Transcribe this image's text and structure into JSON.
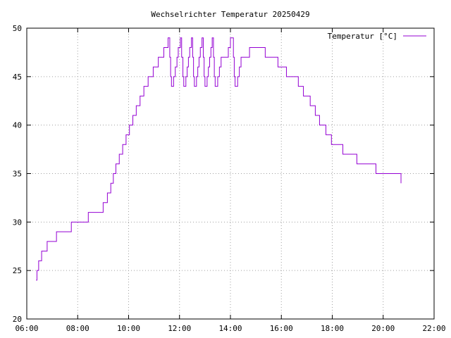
{
  "chart_data": {
    "type": "line",
    "title": "Wechselrichter Temperatur 20250429",
    "xlabel": "",
    "ylabel": "",
    "x_ticks": [
      "06:00",
      "08:00",
      "10:00",
      "12:00",
      "14:00",
      "16:00",
      "18:00",
      "20:00",
      "22:00"
    ],
    "y_ticks": [
      "20",
      "25",
      "30",
      "35",
      "40",
      "45",
      "50"
    ],
    "xlim": [
      "06:00",
      "22:00"
    ],
    "ylim": [
      20,
      50
    ],
    "grid": true,
    "legend_position": "top-right",
    "series": [
      {
        "name": "Temperatur [°C]",
        "color": "#9400d3",
        "step": true,
        "points": [
          [
            "06:22",
            24
          ],
          [
            "06:24",
            25
          ],
          [
            "06:28",
            26
          ],
          [
            "06:35",
            27
          ],
          [
            "06:48",
            28
          ],
          [
            "07:10",
            29
          ],
          [
            "07:45",
            30
          ],
          [
            "08:25",
            31
          ],
          [
            "09:00",
            32
          ],
          [
            "09:10",
            33
          ],
          [
            "09:18",
            34
          ],
          [
            "09:24",
            35
          ],
          [
            "09:30",
            36
          ],
          [
            "09:38",
            37
          ],
          [
            "09:46",
            38
          ],
          [
            "09:54",
            39
          ],
          [
            "10:02",
            40
          ],
          [
            "10:10",
            41
          ],
          [
            "10:18",
            42
          ],
          [
            "10:27",
            43
          ],
          [
            "10:36",
            44
          ],
          [
            "10:46",
            45
          ],
          [
            "10:58",
            46
          ],
          [
            "11:10",
            47
          ],
          [
            "11:23",
            48
          ],
          [
            "11:33",
            49
          ],
          [
            "11:37",
            47
          ],
          [
            "11:39",
            45
          ],
          [
            "11:41",
            44
          ],
          [
            "11:46",
            45
          ],
          [
            "11:50",
            46
          ],
          [
            "11:54",
            47
          ],
          [
            "11:57",
            48
          ],
          [
            "12:02",
            49
          ],
          [
            "12:05",
            47
          ],
          [
            "12:08",
            45
          ],
          [
            "12:10",
            44
          ],
          [
            "12:15",
            45
          ],
          [
            "12:18",
            46
          ],
          [
            "12:21",
            47
          ],
          [
            "12:24",
            48
          ],
          [
            "12:28",
            49
          ],
          [
            "12:31",
            47
          ],
          [
            "12:33",
            45
          ],
          [
            "12:35",
            44
          ],
          [
            "12:40",
            45
          ],
          [
            "12:43",
            46
          ],
          [
            "12:46",
            47
          ],
          [
            "12:49",
            48
          ],
          [
            "12:53",
            49
          ],
          [
            "12:56",
            47
          ],
          [
            "12:58",
            45
          ],
          [
            "13:00",
            44
          ],
          [
            "13:05",
            45
          ],
          [
            "13:08",
            46
          ],
          [
            "13:11",
            47
          ],
          [
            "13:14",
            48
          ],
          [
            "13:17",
            49
          ],
          [
            "13:20",
            47
          ],
          [
            "13:22",
            45
          ],
          [
            "13:24",
            44
          ],
          [
            "13:30",
            45
          ],
          [
            "13:34",
            46
          ],
          [
            "13:38",
            47
          ],
          [
            "13:55",
            48
          ],
          [
            "14:00",
            49
          ],
          [
            "14:07",
            47
          ],
          [
            "14:09",
            45
          ],
          [
            "14:11",
            44
          ],
          [
            "14:17",
            45
          ],
          [
            "14:21",
            46
          ],
          [
            "14:25",
            47
          ],
          [
            "14:45",
            48
          ],
          [
            "15:18",
            48
          ],
          [
            "15:22",
            47
          ],
          [
            "15:52",
            46
          ],
          [
            "16:12",
            45
          ],
          [
            "16:40",
            44
          ],
          [
            "16:52",
            43
          ],
          [
            "17:08",
            42
          ],
          [
            "17:20",
            41
          ],
          [
            "17:30",
            40
          ],
          [
            "17:45",
            39
          ],
          [
            "17:58",
            38
          ],
          [
            "18:25",
            37
          ],
          [
            "18:58",
            36
          ],
          [
            "19:43",
            35
          ],
          [
            "20:42",
            34
          ]
        ],
        "end_time": "20:42"
      }
    ]
  }
}
